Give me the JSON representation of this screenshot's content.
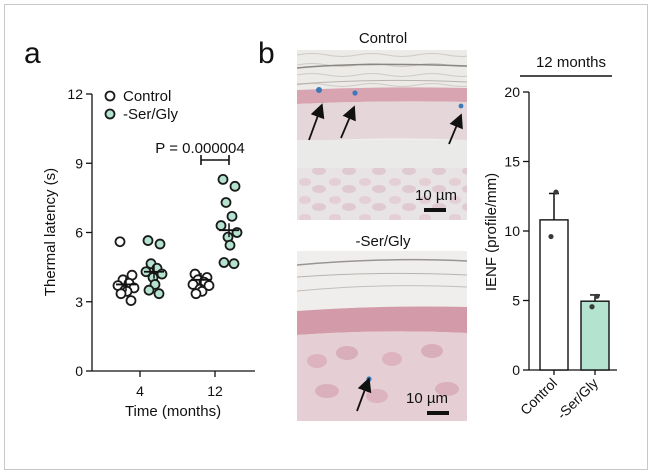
{
  "chart_data": [
    {
      "panel": "a",
      "type": "scatter",
      "ylabel": "Thermal latency (s)",
      "xlabel": "Time (months)",
      "categories": [
        "4",
        "12"
      ],
      "yticks": [
        0,
        3,
        6,
        9,
        12
      ],
      "ylim": [
        0,
        12
      ],
      "legend": [
        "Control",
        "-Ser/Gly"
      ],
      "annotation": "P = 0.000004",
      "colors": {
        "control_fill": "#ffffff",
        "serGly_fill": "#b4e3cf",
        "stroke": "#1a1a1a"
      },
      "series": [
        {
          "name": "Control",
          "means": [
            3.75,
            3.95
          ],
          "points": [
            [
              5.6,
              4.15,
              3.95,
              3.8,
              3.7,
              3.6,
              3.5,
              3.45,
              3.35,
              3.05
            ],
            [
              4.2,
              4.05,
              3.95,
              3.85,
              3.75,
              3.7,
              3.55,
              3.45,
              3.35
            ]
          ]
        },
        {
          "name": "-Ser/Gly",
          "means": [
            4.3,
            6.1
          ],
          "points": [
            [
              5.65,
              5.5,
              4.65,
              4.45,
              4.3,
              4.2,
              4.05,
              3.75,
              3.5,
              3.35
            ],
            [
              8.3,
              8.0,
              7.3,
              6.7,
              6.3,
              6.0,
              5.8,
              5.45,
              4.7,
              4.65
            ]
          ]
        }
      ]
    },
    {
      "panel": "b",
      "type": "bar",
      "title": "12 months",
      "ylabel": "IENF (profile/mm)",
      "categories": [
        "Control",
        "-Ser/Gly"
      ],
      "values": [
        10.8,
        4.95
      ],
      "errors": [
        1.9,
        0.45
      ],
      "points": [
        [
          12.8,
          9.6
        ],
        [
          5.3,
          4.55
        ]
      ],
      "yticks": [
        0,
        5,
        10,
        15,
        20
      ],
      "ylim": [
        0,
        20
      ],
      "colors": [
        "#ffffff",
        "#b4e3cf"
      ]
    }
  ],
  "micrographs": [
    {
      "title": "Control",
      "scale_label": "10 µm"
    },
    {
      "title": "-Ser/Gly",
      "scale_label": "10 µm"
    }
  ]
}
